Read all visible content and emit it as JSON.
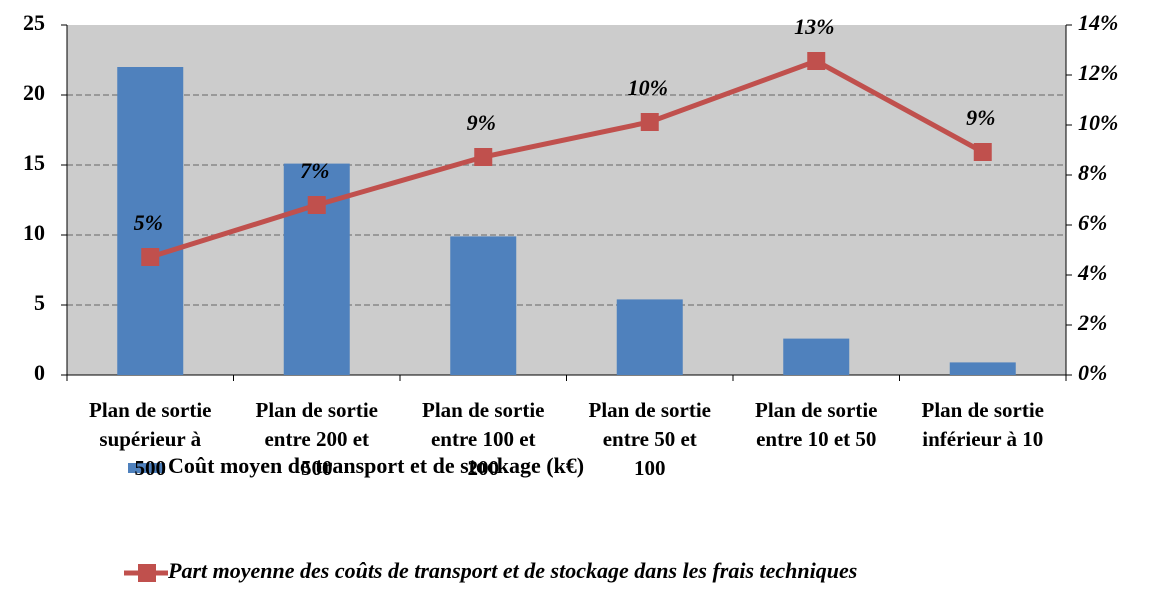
{
  "chart_data": {
    "type": "bar-line",
    "categories": [
      "Plan de sortie supérieur à 500",
      "Plan de sortie entre 200 et 500",
      "Plan de sortie entre 100 et 200",
      "Plan de sortie entre 50 et 100",
      "Plan de sortie entre 10 et 50",
      "Plan de sortie inférieur à 10"
    ],
    "series": [
      {
        "name": "Coût moyen de transport et de stockage (k€)",
        "type": "bar",
        "color": "#4f81bd",
        "values": [
          22,
          15.1,
          9.9,
          5.4,
          2.6,
          0.9
        ]
      },
      {
        "name": "Part moyenne des coûts de transport et de stockage dans les frais techniques",
        "type": "line",
        "axis": "y2",
        "color": "#c0504d",
        "values": [
          4.72,
          6.8,
          8.72,
          10.12,
          12.56,
          8.92
        ],
        "value_labels": [
          "5%",
          "7%",
          "9%",
          "10%",
          "13%",
          "9%"
        ]
      }
    ],
    "ylim": [
      0,
      25
    ],
    "yticks": [
      0,
      5,
      10,
      15,
      20,
      25
    ],
    "y2lim": [
      0,
      14
    ],
    "y2ticks": [
      {
        "value": 0,
        "label": "0%"
      },
      {
        "value": 2,
        "label": "2%"
      },
      {
        "value": 4,
        "label": "4%"
      },
      {
        "value": 6,
        "label": "6%"
      },
      {
        "value": 8,
        "label": "8%"
      },
      {
        "value": 10,
        "label": "10%"
      },
      {
        "value": 12,
        "label": "12%"
      },
      {
        "value": 14,
        "label": "14%"
      }
    ],
    "grid": true,
    "plot_background": "#cccccc",
    "legend": "bottom"
  }
}
